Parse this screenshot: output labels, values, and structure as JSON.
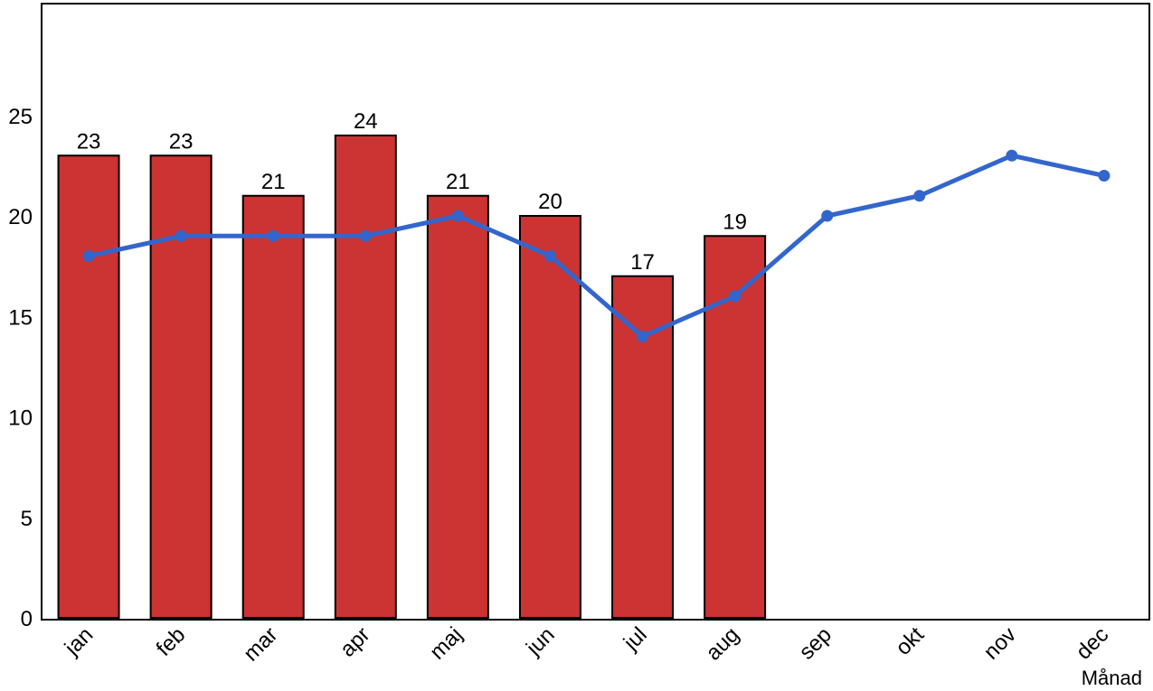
{
  "chart_data": {
    "type": "bar",
    "title": "",
    "xlabel": "Månad",
    "ylabel": "",
    "categories": [
      "jan",
      "feb",
      "mar",
      "apr",
      "maj",
      "jun",
      "jul",
      "aug",
      "sep",
      "okt",
      "nov",
      "dec"
    ],
    "ylim": [
      0,
      30
    ],
    "yticks": [
      0,
      5,
      10,
      15,
      20,
      25
    ],
    "grid": false,
    "legend": "none",
    "series": [
      {
        "type": "bar",
        "values": [
          23,
          23,
          21,
          24,
          21,
          20,
          17,
          19,
          null,
          null,
          null,
          null
        ],
        "data_labels": [
          "23",
          "23",
          "21",
          "24",
          "21",
          "20",
          "17",
          "19"
        ],
        "color": "#cc3333"
      },
      {
        "type": "line",
        "values": [
          18,
          19,
          19,
          19,
          20,
          18,
          14,
          16,
          20,
          21,
          23,
          22
        ],
        "color": "#3366cc"
      }
    ]
  }
}
